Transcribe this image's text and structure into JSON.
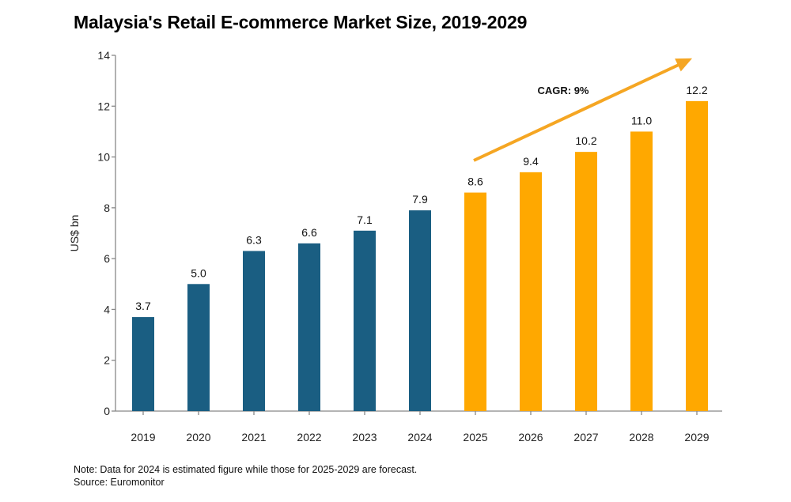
{
  "chart_data": {
    "type": "bar",
    "title": "Malaysia's Retail E-commerce Market Size, 2019-2029",
    "xlabel": "",
    "ylabel": "US$ bn",
    "ylim": [
      0,
      14
    ],
    "yticks": [
      0,
      2,
      4,
      6,
      8,
      10,
      12,
      14
    ],
    "categories": [
      "2019",
      "2020",
      "2021",
      "2022",
      "2023",
      "2024",
      "2025",
      "2026",
      "2027",
      "2028",
      "2029"
    ],
    "values": [
      3.7,
      5.0,
      6.3,
      6.6,
      7.1,
      7.9,
      8.6,
      9.4,
      10.2,
      11.0,
      12.2
    ],
    "value_labels": [
      "3.7",
      "5.0",
      "6.3",
      "6.6",
      "7.1",
      "7.9",
      "8.6",
      "9.4",
      "10.2",
      "11.0",
      "12.2"
    ],
    "series_status": [
      "historical",
      "historical",
      "historical",
      "historical",
      "historical",
      "historical",
      "forecast",
      "forecast",
      "forecast",
      "forecast",
      "forecast"
    ],
    "colors": {
      "historical": "#1a5e82",
      "forecast": "#ffa800",
      "arrow": "#f5a623"
    },
    "annotation": {
      "text": "CAGR: 9%",
      "type": "arrow",
      "from_category": "2025",
      "to_category": "2029"
    },
    "grid": false,
    "legend": "none"
  },
  "footnote": {
    "note": "Note: Data for 2024 is estimated figure while those for 2025-2029 are forecast.",
    "source": "Source: Euromonitor"
  }
}
